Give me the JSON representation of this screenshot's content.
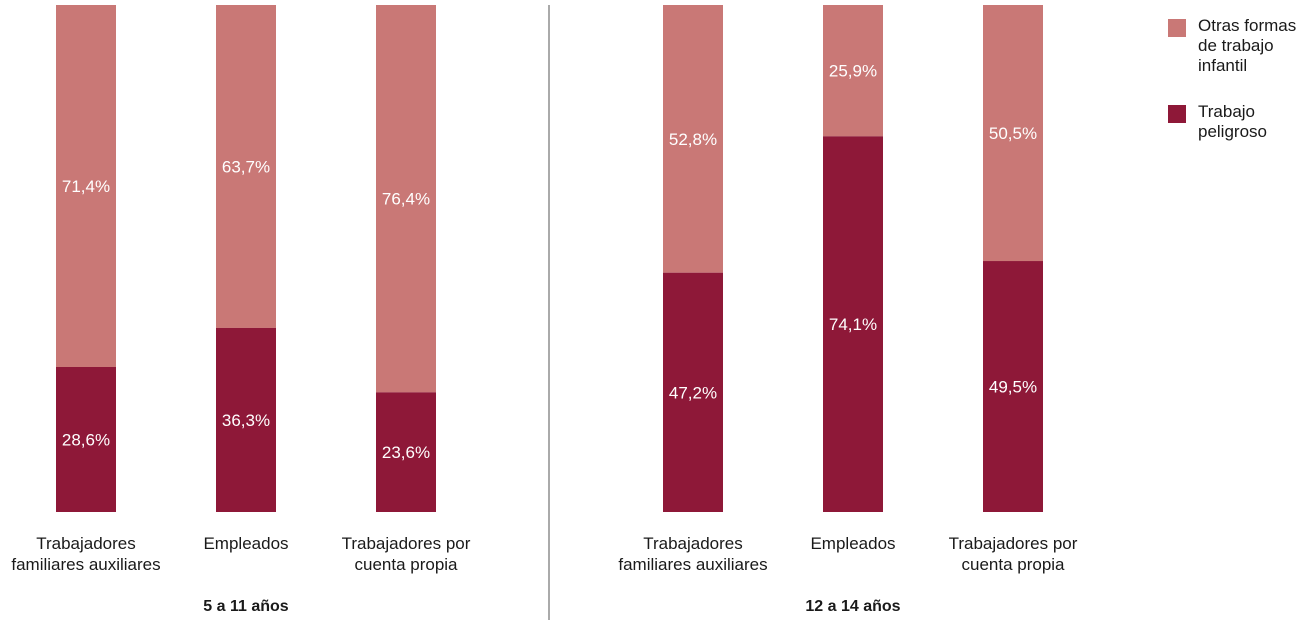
{
  "chart_data": {
    "type": "bar",
    "stacked": true,
    "grid": false,
    "legend_position": "top-right",
    "groups": [
      {
        "label": "5 a 11 años",
        "categories": [
          "Trabajadores familiares auxiliares",
          "Empleados",
          "Trabajadores por cuenta propia"
        ],
        "series": [
          {
            "name": "Trabajo peligroso",
            "values": [
              28.6,
              36.3,
              23.6
            ],
            "labels": [
              "28,6%",
              "36,3%",
              "23,6%"
            ]
          },
          {
            "name": "Otras formas de trabajo infantil",
            "values": [
              71.4,
              63.7,
              76.4
            ],
            "labels": [
              "71,4%",
              "63,7%",
              "76,4%"
            ]
          }
        ]
      },
      {
        "label": "12 a 14 años",
        "categories": [
          "Trabajadores familiares auxiliares",
          "Empleados",
          "Trabajadores por cuenta propia"
        ],
        "series": [
          {
            "name": "Trabajo peligroso",
            "values": [
              47.2,
              74.1,
              49.5
            ],
            "labels": [
              "47,2%",
              "74,1%",
              "49,5%"
            ]
          },
          {
            "name": "Otras formas de trabajo infantil",
            "values": [
              52.8,
              25.9,
              50.5
            ],
            "labels": [
              "52,8%",
              "25,9%",
              "50,5%"
            ]
          }
        ]
      }
    ],
    "category_display": [
      [
        "Trabajadores",
        "familiares auxiliares"
      ],
      [
        "Empleados"
      ],
      [
        "Trabajadores por",
        "cuenta propia"
      ]
    ],
    "ylim": [
      0,
      100
    ]
  },
  "legend": [
    {
      "lines": [
        "Otras formas",
        "de trabajo",
        "infantil"
      ],
      "color": "#c97876"
    },
    {
      "lines": [
        "Trabajo",
        "peligroso"
      ],
      "color": "#8e1838"
    }
  ],
  "colors": {
    "hazardous": "#8e1838",
    "other": "#c97876"
  }
}
